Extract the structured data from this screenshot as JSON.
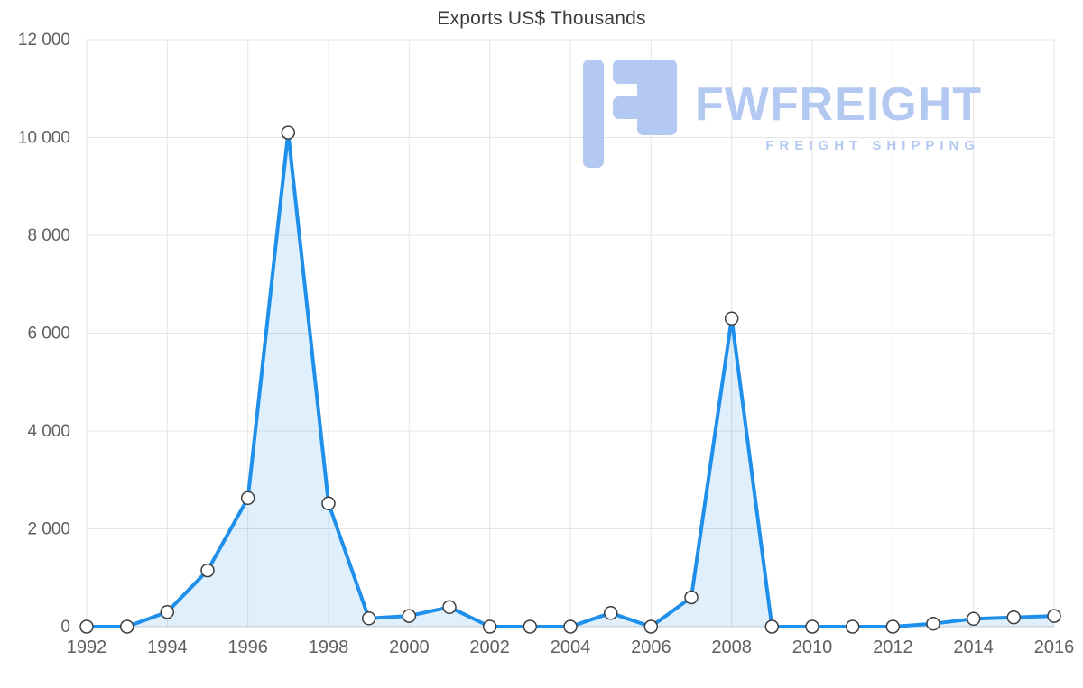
{
  "chart_data": {
    "type": "area",
    "title": "Exports US$ Thousands",
    "x": [
      1992,
      1993,
      1994,
      1995,
      1996,
      1997,
      1998,
      1999,
      2000,
      2001,
      2002,
      2003,
      2004,
      2005,
      2006,
      2007,
      2008,
      2009,
      2010,
      2011,
      2012,
      2013,
      2014,
      2015,
      2016
    ],
    "values": [
      0,
      0,
      300,
      1150,
      2630,
      10100,
      2520,
      170,
      220,
      400,
      0,
      0,
      0,
      280,
      0,
      600,
      6300,
      0,
      0,
      0,
      0,
      60,
      160,
      190,
      220
    ],
    "ylim": [
      0,
      12000
    ],
    "yticks": [
      {
        "value": 0,
        "label": "0"
      },
      {
        "value": 2000,
        "label": "2 000"
      },
      {
        "value": 4000,
        "label": "4 000"
      },
      {
        "value": 6000,
        "label": "6 000"
      },
      {
        "value": 8000,
        "label": "8 000"
      },
      {
        "value": 10000,
        "label": "10 000"
      },
      {
        "value": 12000,
        "label": "12 000"
      }
    ],
    "xticks": [
      {
        "value": 1992,
        "label": "1992"
      },
      {
        "value": 1994,
        "label": "1994"
      },
      {
        "value": 1996,
        "label": "1996"
      },
      {
        "value": 1998,
        "label": "1998"
      },
      {
        "value": 2000,
        "label": "2000"
      },
      {
        "value": 2002,
        "label": "2002"
      },
      {
        "value": 2004,
        "label": "2004"
      },
      {
        "value": 2006,
        "label": "2006"
      },
      {
        "value": 2008,
        "label": "2008"
      },
      {
        "value": 2010,
        "label": "2010"
      },
      {
        "value": 2012,
        "label": "2012"
      },
      {
        "value": 2014,
        "label": "2014"
      },
      {
        "value": 2016,
        "label": "2016"
      }
    ],
    "grid": true,
    "legend_position": "none",
    "line_color": "#1e8fea",
    "fill_color": "rgba(30, 143, 234, 0.14)",
    "marker_fill": "#ffffff",
    "marker_stroke": "#3d3d3d",
    "grid_color": "#e5e5e5",
    "zero_line_color": "#cfcfcf",
    "axis_label_color": "#5f5f5f",
    "title_color": "#3b3b3b"
  },
  "watermark": {
    "brand": "FWFREIGHT",
    "tagline": "FREIGHT SHIPPING",
    "color": "#b3c9f1"
  }
}
